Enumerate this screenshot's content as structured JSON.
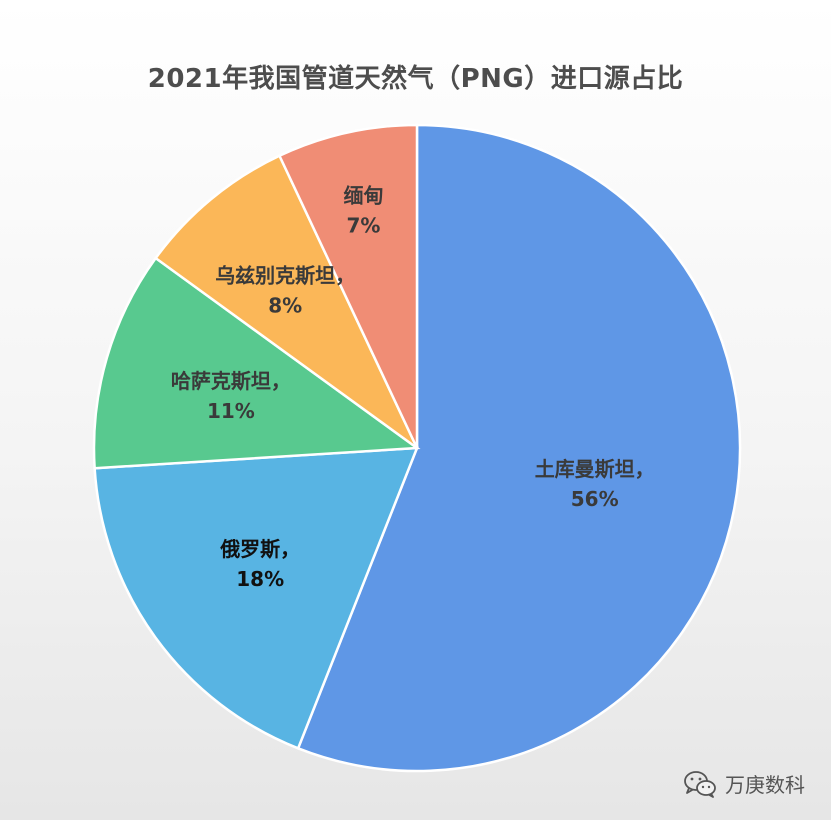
{
  "chart_data": {
    "type": "pie",
    "title": "2021年我国管道天然气（PNG）进口源占比",
    "slices": [
      {
        "label": "土库曼斯坦，",
        "pct_label": "56%",
        "value": 56,
        "color": "#5f97e6",
        "text_color": "#3a3a3a"
      },
      {
        "label": "俄罗斯，",
        "pct_label": "18%",
        "value": 18,
        "color": "#58b4e3",
        "text_color": "#111111"
      },
      {
        "label": "哈萨克斯坦，",
        "pct_label": "11%",
        "value": 11,
        "color": "#58c98f",
        "text_color": "#3a3a3a"
      },
      {
        "label": "乌兹别克斯坦，",
        "pct_label": "8%",
        "value": 8,
        "color": "#fbb758",
        "text_color": "#3a3a3a"
      },
      {
        "label": "缅甸",
        "pct_label": "7%",
        "value": 7,
        "color": "#f08d75",
        "text_color": "#3a3a3a"
      }
    ],
    "start_angle_deg": 0,
    "direction": "clockwise"
  },
  "watermark": {
    "text": "万庚数科",
    "icon": "wechat-icon"
  }
}
